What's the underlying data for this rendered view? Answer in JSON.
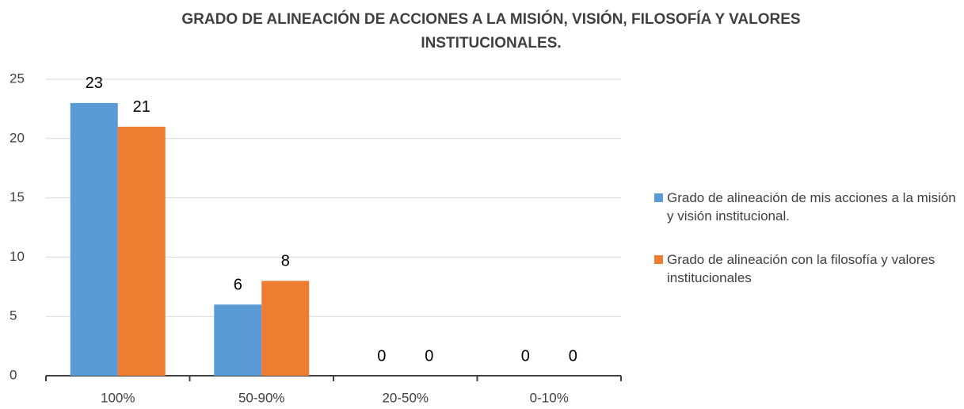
{
  "chart_data": {
    "type": "bar",
    "title": "GRADO DE ALINEACIÓN DE ACCIONES A LA MISIÓN, VISIÓN, FILOSOFÍA Y VALORES INSTITUCIONALES.",
    "categories": [
      "100%",
      "50-90%",
      "20-50%",
      "0-10%"
    ],
    "series": [
      {
        "name": "Grado de alineación de mis acciones a la misión y visión institucional.",
        "color": "#5b9bd5",
        "values": [
          23,
          6,
          0,
          0
        ]
      },
      {
        "name": "Grado de alineación con la filosofía y valores institucionales",
        "color": "#ed7d31",
        "values": [
          21,
          8,
          0,
          0
        ]
      }
    ],
    "ylim": [
      0,
      25
    ],
    "yticks": [
      0,
      5,
      10,
      15,
      20,
      25
    ],
    "grid": true,
    "legend": "right"
  }
}
